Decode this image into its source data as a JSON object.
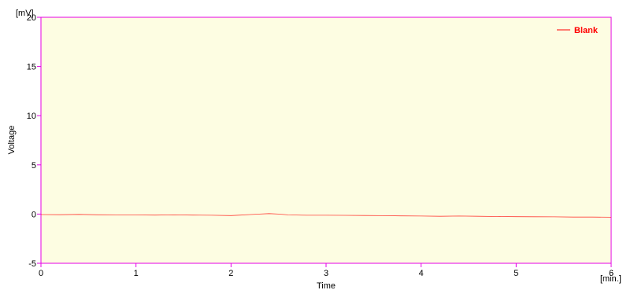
{
  "chart_data": {
    "type": "line",
    "xlabel": "Time",
    "x_unit": "[min.]",
    "ylabel": "Voltage",
    "y_unit": "[mV]",
    "xlim": [
      0,
      6
    ],
    "ylim": [
      -5,
      20
    ],
    "x_ticks": [
      0,
      1,
      2,
      3,
      4,
      5,
      6
    ],
    "y_ticks": [
      -5,
      0,
      5,
      10,
      15,
      20
    ],
    "grid": false,
    "legend_position": "top-right",
    "series": [
      {
        "name": "Blank",
        "color": "#ff0000",
        "x": [
          0,
          0.2,
          0.4,
          0.6,
          0.8,
          1.0,
          1.2,
          1.4,
          1.6,
          1.8,
          2.0,
          2.1,
          2.2,
          2.3,
          2.4,
          2.5,
          2.6,
          2.8,
          3.0,
          3.2,
          3.4,
          3.6,
          3.8,
          4.0,
          4.2,
          4.4,
          4.6,
          4.8,
          5.0,
          5.2,
          5.4,
          5.6,
          5.8,
          6.0
        ],
        "y": [
          -0.05,
          -0.06,
          -0.03,
          -0.07,
          -0.08,
          -0.09,
          -0.1,
          -0.08,
          -0.1,
          -0.12,
          -0.15,
          -0.1,
          -0.05,
          0.0,
          0.05,
          0.0,
          -0.08,
          -0.12,
          -0.12,
          -0.13,
          -0.14,
          -0.16,
          -0.18,
          -0.2,
          -0.22,
          -0.2,
          -0.22,
          -0.25,
          -0.26,
          -0.27,
          -0.28,
          -0.3,
          -0.3,
          -0.32
        ]
      }
    ]
  },
  "colors": {
    "plot_background": "#fdfde2",
    "frame": "#e600e6",
    "series": "#ff0000"
  }
}
